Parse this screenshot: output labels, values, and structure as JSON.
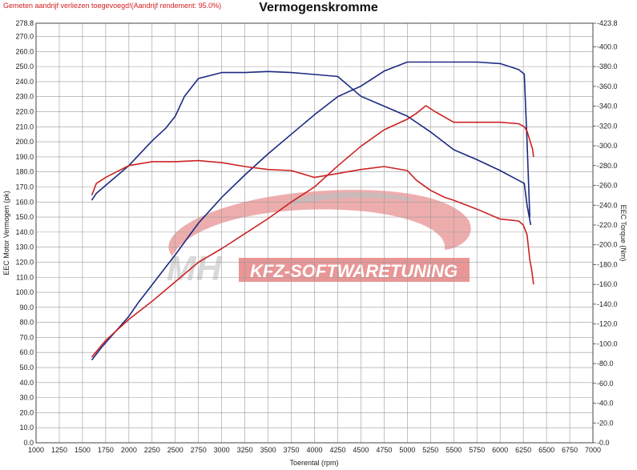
{
  "header": {
    "note": "Gemeten aandrijf verliezen toegevoegd!(Aandrijf rendement: 95.0%)",
    "title": "Vermogenskromme"
  },
  "watermark": {
    "logo": "MH",
    "text": "KFZ-SOFTWARETUNING"
  },
  "colors": {
    "tuned": "#1c2a82",
    "stock": "#cc2222",
    "grid": "#9a9a9a",
    "watermark": "#e06a6a"
  },
  "chart_data": {
    "type": "line",
    "title": "Vermogenskromme",
    "xlabel": "Toerental (rpm)",
    "ylabel": "EEC Motor Vermogen (pk)",
    "y2label": "EEC Torque (Nm)",
    "xlim": [
      1000,
      7000
    ],
    "ylim": [
      0,
      278.8
    ],
    "y2lim": [
      0,
      423.8
    ],
    "grid": true,
    "x_ticks": [
      1000,
      1250,
      1500,
      1750,
      2000,
      2250,
      2500,
      2750,
      3000,
      3250,
      3500,
      3750,
      4000,
      4250,
      4500,
      4750,
      5000,
      5250,
      5500,
      5750,
      6000,
      6250,
      6500,
      6750,
      7000
    ],
    "y_ticks": [
      "0.0",
      "10.0",
      "20.0",
      "30.0",
      "40.0",
      "50.0",
      "60.0",
      "70.0",
      "80.0",
      "90.0",
      "100.0",
      "110.0",
      "120.0",
      "130.0",
      "140.0",
      "150.0",
      "160.0",
      "170.0",
      "180.0",
      "190.0",
      "200.0",
      "210.0",
      "220.0",
      "230.0",
      "240.0",
      "250.0",
      "260.0",
      "270.0",
      "278.8"
    ],
    "y2_ticks": [
      "0.0",
      "20.0",
      "40.0",
      "60.0",
      "80.0",
      "100.0",
      "120.0",
      "140.0",
      "160.0",
      "180.0",
      "200.0",
      "220.0",
      "240.0",
      "260.0",
      "280.0",
      "300.0",
      "320.0",
      "340.0",
      "360.0",
      "380.0",
      "400.0",
      "423.8"
    ],
    "series": [
      {
        "name": "",
        "axis": "left",
        "color": "#1c2a82",
        "x": [
          1600,
          1700,
          1800,
          1900,
          2000,
          2100,
          2250,
          2400,
          2500,
          2750,
          3000,
          3250,
          3500,
          3750,
          4000,
          4250,
          4500,
          4750,
          5000,
          5250,
          5500,
          5750,
          6000,
          6100,
          6200,
          6260,
          6290,
          6320
        ],
        "y": [
          55,
          63,
          70,
          77,
          84,
          93,
          105,
          117,
          125,
          146,
          163,
          178,
          192,
          205,
          218,
          230,
          237,
          247,
          253,
          253,
          253,
          253,
          252,
          250,
          248,
          245,
          200,
          150
        ]
      },
      {
        "name": "",
        "axis": "right",
        "color": "#1c2a82",
        "x": [
          1600,
          1650,
          1750,
          1850,
          2000,
          2100,
          2250,
          2400,
          2500,
          2600,
          2750,
          3000,
          3250,
          3500,
          3750,
          4000,
          4250,
          4500,
          4750,
          5000,
          5250,
          5500,
          5750,
          6000,
          6200,
          6260,
          6290,
          6330
        ],
        "y": [
          245,
          252,
          260,
          268,
          280,
          290,
          305,
          318,
          330,
          350,
          368,
          374,
          374,
          375,
          374,
          372,
          370,
          350,
          340,
          330,
          314,
          296,
          286,
          275,
          265,
          262,
          240,
          220
        ]
      },
      {
        "name": "",
        "axis": "left",
        "color": "#cc2222",
        "x": [
          1600,
          1750,
          2000,
          2250,
          2500,
          2750,
          3000,
          3250,
          3500,
          3750,
          4000,
          4250,
          4500,
          4750,
          5000,
          5100,
          5200,
          5300,
          5500,
          5750,
          6000,
          6200,
          6260,
          6290,
          6350,
          6360
        ],
        "y": [
          57,
          68,
          82,
          94,
          107,
          120,
          129,
          139,
          149,
          160,
          170,
          184,
          197,
          208,
          215,
          219,
          224,
          220,
          213,
          213,
          213,
          212,
          210,
          207,
          195,
          190
        ]
      },
      {
        "name": "",
        "axis": "right",
        "color": "#cc2222",
        "x": [
          1600,
          1650,
          1750,
          2000,
          2250,
          2500,
          2750,
          3000,
          3250,
          3500,
          3750,
          4000,
          4250,
          4500,
          4750,
          5000,
          5100,
          5250,
          5400,
          5500,
          5750,
          6000,
          6200,
          6250,
          6290,
          6320,
          6340,
          6360
        ],
        "y": [
          250,
          262,
          268,
          280,
          284,
          284,
          285,
          283,
          279,
          276,
          275,
          268,
          272,
          276,
          279,
          275,
          265,
          255,
          248,
          245,
          236,
          226,
          224,
          220,
          210,
          185,
          175,
          160
        ]
      }
    ]
  }
}
